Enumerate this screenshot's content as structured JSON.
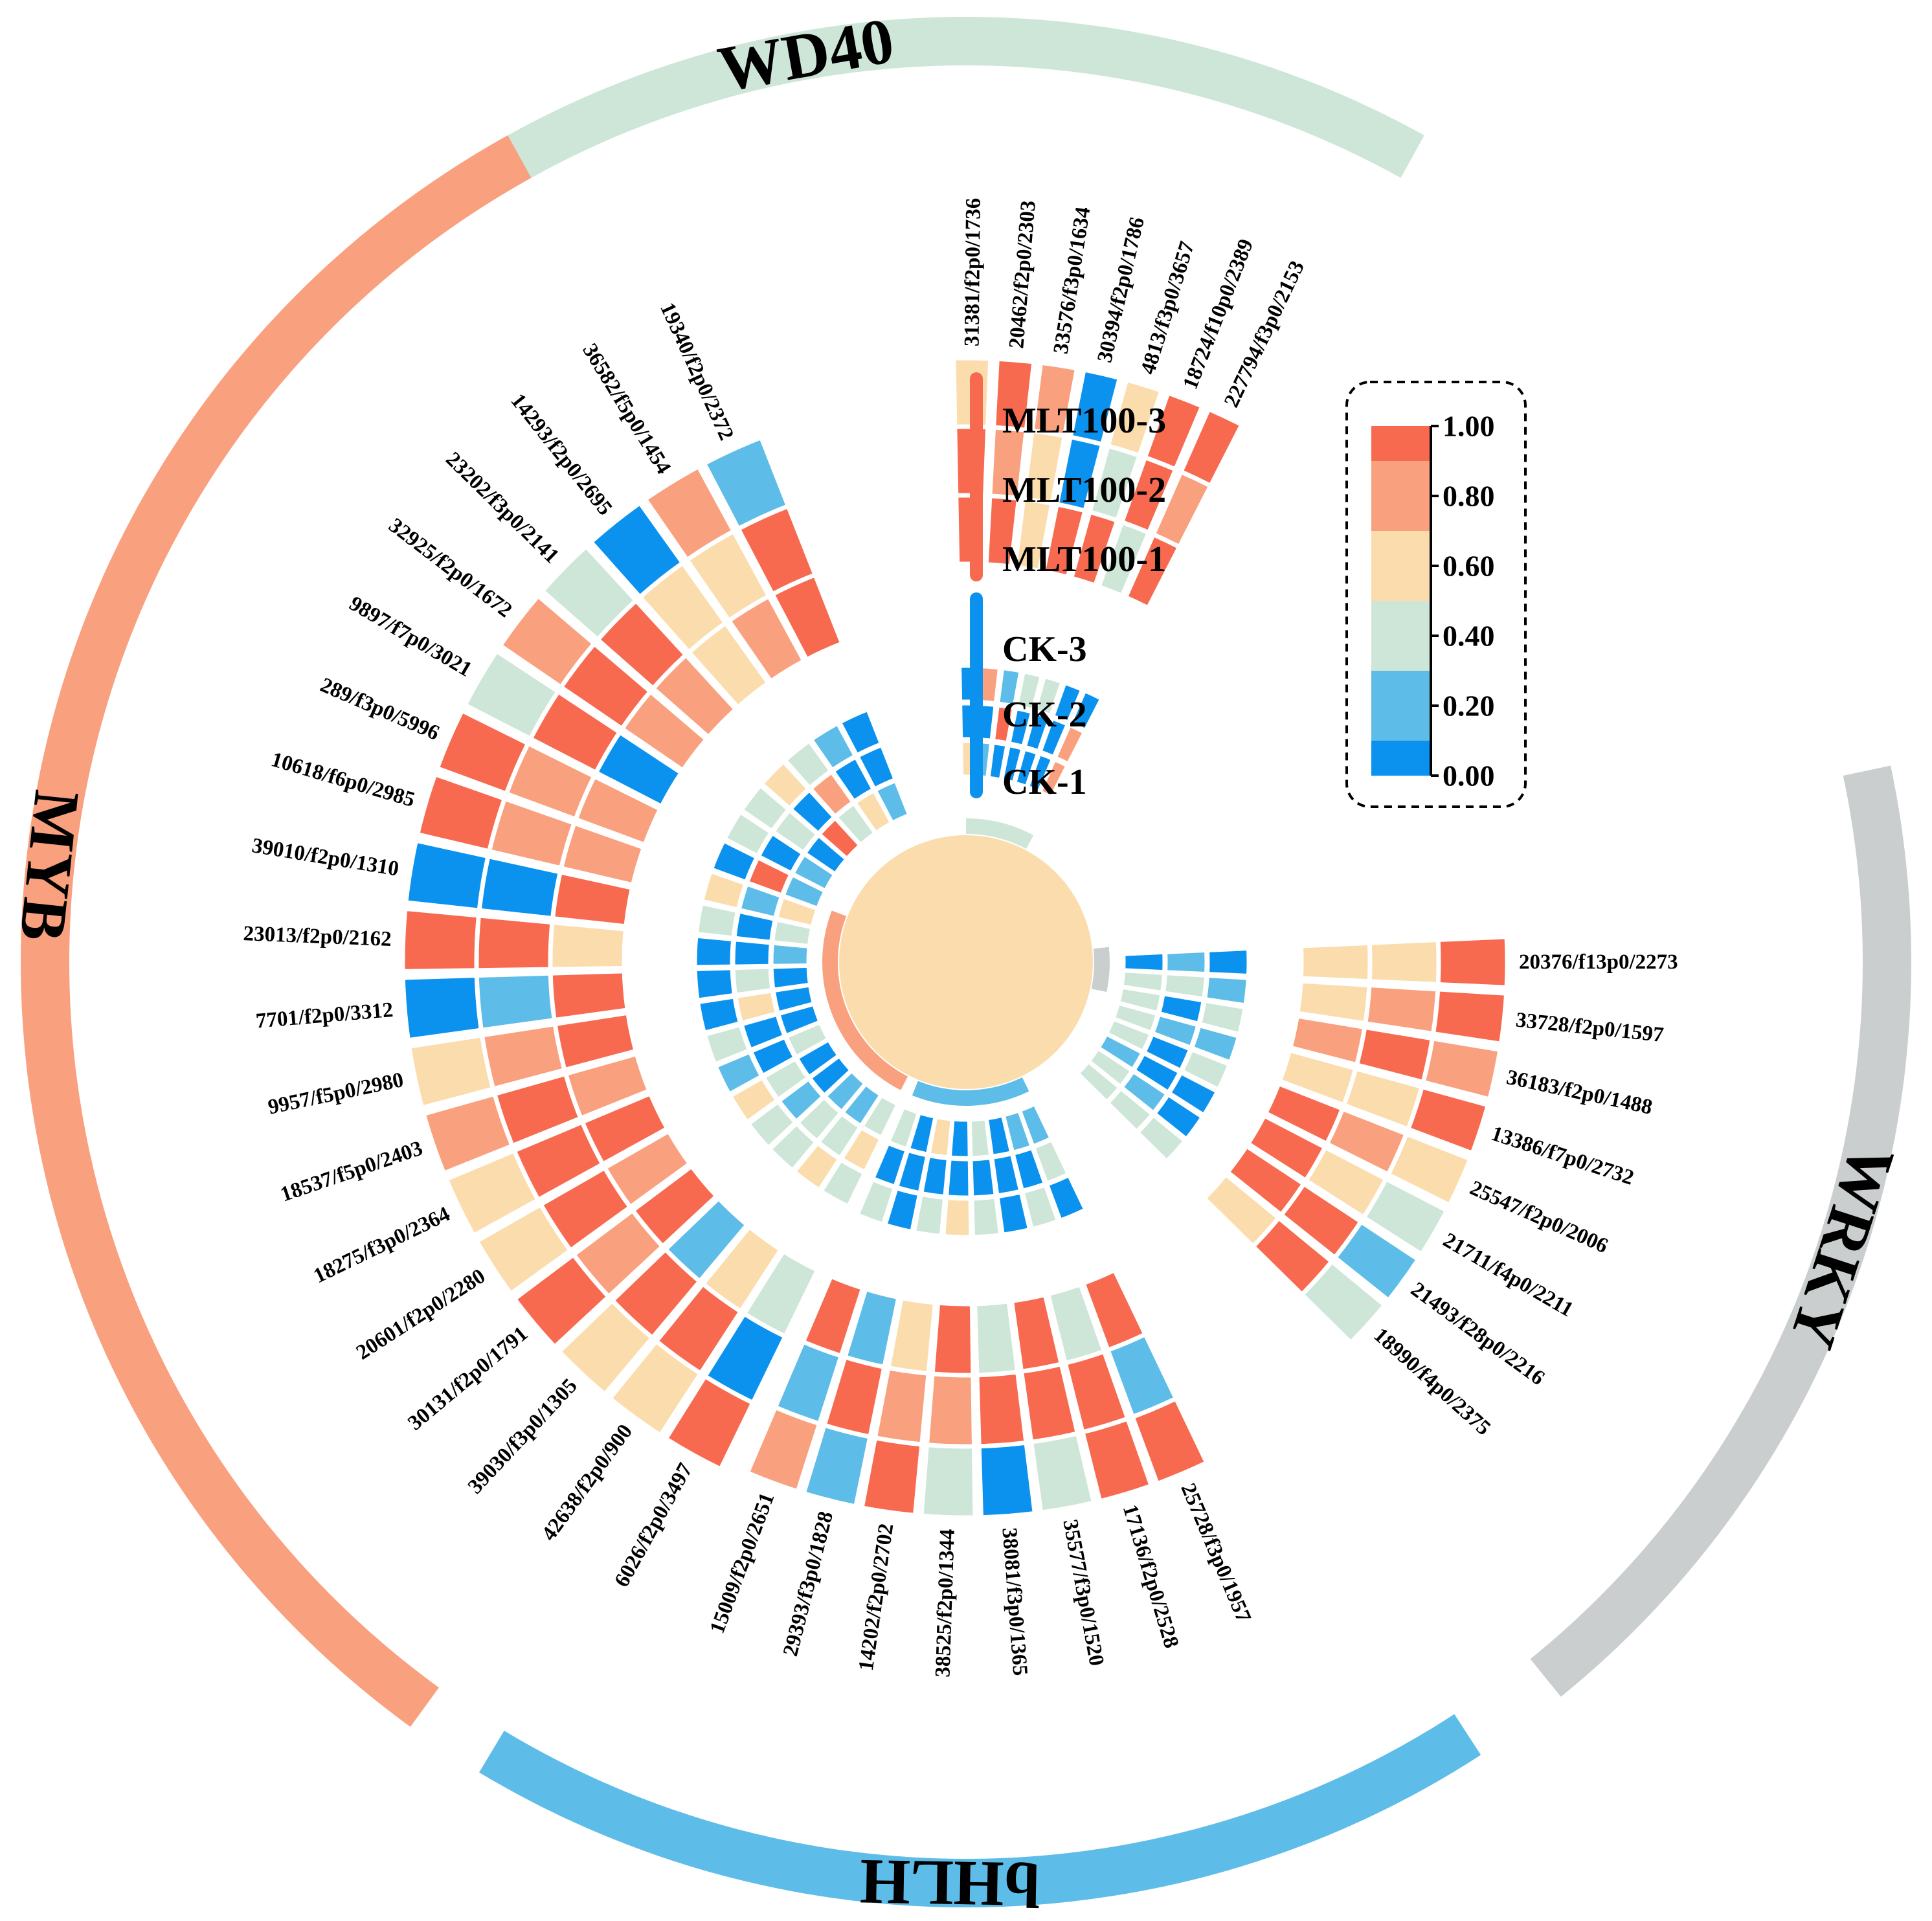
{
  "chart_data": {
    "type": "heatmap",
    "layout": "circular",
    "colorscale": {
      "min": 0.0,
      "max": 1.0,
      "bins": [
        {
          "from": 0.0,
          "to": 0.1,
          "color": "#0b92ef"
        },
        {
          "from": 0.1,
          "to": 0.3,
          "color": "#5dbde8"
        },
        {
          "from": 0.3,
          "to": 0.5,
          "color": "#cde6d7"
        },
        {
          "from": 0.5,
          "to": 0.7,
          "color": "#fbdcac"
        },
        {
          "from": 0.7,
          "to": 0.9,
          "color": "#f9a07f"
        },
        {
          "from": 0.9,
          "to": 1.0,
          "color": "#f76a50"
        }
      ],
      "legend_ticks": [
        "1.00",
        "0.80",
        "0.60",
        "0.40",
        "0.20",
        "0.00"
      ]
    },
    "samples": [
      "CK-1",
      "CK-2",
      "CK-3",
      "MLT100-1",
      "MLT100-2",
      "MLT100-3"
    ],
    "sample_groups": [
      {
        "name": "MLT100",
        "color": "#f76a50",
        "labels": [
          "MLT100-3",
          "MLT100-2",
          "MLT100-1"
        ]
      },
      {
        "name": "CK",
        "color": "#0b92ef",
        "labels": [
          "CK-3",
          "CK-2",
          "CK-1"
        ]
      }
    ],
    "families": [
      {
        "name": "WD40",
        "color": "#cde6d7",
        "genes": [
          {
            "id": "227794/f3p0/2153",
            "values": [
              0.7,
              0.75,
              0.0,
              0.95,
              0.8,
              0.95
            ]
          },
          {
            "id": "18724/f10p0/2389",
            "values": [
              0.0,
              0.0,
              0.05,
              0.4,
              0.95,
              0.95
            ]
          },
          {
            "id": "4813/f3p0/3657",
            "values": [
              0.05,
              0.0,
              0.4,
              0.95,
              0.4,
              0.6
            ]
          },
          {
            "id": "30394/f2p0/1786",
            "values": [
              0.0,
              0.0,
              0.4,
              0.95,
              0.0,
              0.0
            ]
          },
          {
            "id": "33576/f3p0/1634",
            "values": [
              0.0,
              0.95,
              0.2,
              0.6,
              0.6,
              0.8
            ]
          },
          {
            "id": "20462/f2p0/2303",
            "values": [
              0.2,
              0.0,
              0.8,
              0.95,
              0.8,
              0.95
            ]
          },
          {
            "id": "31381/f2p0/1736",
            "values": [
              0.6,
              0.0,
              0.0,
              0.95,
              0.95,
              0.6
            ]
          }
        ]
      },
      {
        "name": "WRKY",
        "color": "#cacecf",
        "genes": [
          {
            "id": "20376/f13p0/2273",
            "values": [
              0.0,
              0.2,
              0.0,
              0.6,
              0.6,
              0.95
            ]
          },
          {
            "id": "33728/f2p0/1597",
            "values": [
              0.4,
              0.4,
              0.2,
              0.6,
              0.8,
              0.95
            ]
          },
          {
            "id": "36183/f2p0/1488",
            "values": [
              0.4,
              0.0,
              0.4,
              0.8,
              0.95,
              0.8
            ]
          },
          {
            "id": "13386/f7p0/2732",
            "values": [
              0.4,
              0.2,
              0.2,
              0.6,
              0.6,
              0.95
            ]
          },
          {
            "id": "25547/f2p0/2006",
            "values": [
              0.4,
              0.0,
              0.4,
              0.95,
              0.8,
              0.6
            ]
          },
          {
            "id": "21711/f4p0/2211",
            "values": [
              0.2,
              0.0,
              0.0,
              0.95,
              0.6,
              0.4
            ]
          },
          {
            "id": "21493/f28p0/2216",
            "values": [
              0.4,
              0.2,
              0.0,
              0.95,
              0.95,
              0.2
            ]
          },
          {
            "id": "18990/f4p0/2375",
            "values": [
              0.4,
              0.4,
              0.4,
              0.6,
              0.95,
              0.4
            ]
          }
        ]
      },
      {
        "name": "bHLH",
        "color": "#5dbde8",
        "genes": [
          {
            "id": "25728/f3p0/1957",
            "values": [
              0.2,
              0.4,
              0.0,
              0.95,
              0.2,
              0.95
            ]
          },
          {
            "id": "17136/f2p0/2528",
            "values": [
              0.2,
              0.0,
              0.4,
              0.4,
              0.95,
              0.95
            ]
          },
          {
            "id": "35577/f3p0/1520",
            "values": [
              0.0,
              0.0,
              0.0,
              0.95,
              0.95,
              0.4
            ]
          },
          {
            "id": "38081/f3p0/1365",
            "values": [
              0.4,
              0.0,
              0.4,
              0.4,
              0.95,
              0.0
            ]
          },
          {
            "id": "38525/f2p0/1344",
            "values": [
              0.0,
              0.0,
              0.6,
              0.95,
              0.8,
              0.4
            ]
          },
          {
            "id": "14202/f2p0/2702",
            "values": [
              0.6,
              0.0,
              0.4,
              0.6,
              0.8,
              0.95
            ]
          },
          {
            "id": "29393/f3p0/1828",
            "values": [
              0.0,
              0.0,
              0.0,
              0.2,
              0.95,
              0.2
            ]
          },
          {
            "id": "15009/f2p0/2651",
            "values": [
              0.4,
              0.0,
              0.4,
              0.95,
              0.2,
              0.8
            ]
          }
        ]
      },
      {
        "name": "MYB",
        "color": "#f9a07f",
        "genes": [
          {
            "id": "6026/f2p0/3497",
            "values": [
              0.4,
              0.6,
              0.4,
              0.4,
              0.0,
              0.95
            ]
          },
          {
            "id": "42638/f2p0/900",
            "values": [
              0.2,
              0.4,
              0.6,
              0.6,
              0.95,
              0.6
            ]
          },
          {
            "id": "39030/f3p0/1305",
            "values": [
              0.2,
              0.4,
              0.4,
              0.2,
              0.95,
              0.6
            ]
          },
          {
            "id": "30131/f2p0/1791",
            "values": [
              0.0,
              0.2,
              0.4,
              0.95,
              0.8,
              0.95
            ]
          },
          {
            "id": "20601/f2p0/2280",
            "values": [
              0.0,
              0.4,
              0.6,
              0.8,
              0.95,
              0.6
            ]
          },
          {
            "id": "18275/f3p0/2364",
            "values": [
              0.4,
              0.0,
              0.2,
              0.95,
              0.95,
              0.6
            ]
          },
          {
            "id": "18537/f5p0/2403",
            "values": [
              0.0,
              0.0,
              0.4,
              0.8,
              0.95,
              0.8
            ]
          },
          {
            "id": "9957/f5p0/2980",
            "values": [
              0.0,
              0.6,
              0.0,
              0.95,
              0.8,
              0.6
            ]
          },
          {
            "id": "7701/f2p0/3312",
            "values": [
              0.0,
              0.4,
              0.0,
              0.95,
              0.2,
              0.0
            ]
          },
          {
            "id": "23013/f2p0/2162",
            "values": [
              0.2,
              0.0,
              0.0,
              0.6,
              0.95,
              0.95
            ]
          },
          {
            "id": "39010/f2p0/1310",
            "values": [
              0.4,
              0.0,
              0.4,
              0.95,
              0.0,
              0.0
            ]
          },
          {
            "id": "10618/f6p0/2985",
            "values": [
              0.6,
              0.2,
              0.6,
              0.8,
              0.8,
              0.95
            ]
          },
          {
            "id": "289/f3p0/5996",
            "values": [
              0.2,
              0.95,
              0.0,
              0.8,
              0.8,
              0.95
            ]
          },
          {
            "id": "9897/f7p0/3021",
            "values": [
              0.2,
              0.0,
              0.4,
              0.0,
              0.95,
              0.4
            ]
          },
          {
            "id": "32925/f2p0/1672",
            "values": [
              0.0,
              0.4,
              0.4,
              0.8,
              0.95,
              0.8
            ]
          },
          {
            "id": "23202/f3p0/2141",
            "values": [
              0.95,
              0.0,
              0.6,
              0.8,
              0.95,
              0.4
            ]
          },
          {
            "id": "14293/f2p0/2695",
            "values": [
              0.4,
              0.8,
              0.4,
              0.6,
              0.6,
              0.0
            ]
          },
          {
            "id": "36582/f5p0/1454",
            "values": [
              0.6,
              0.0,
              0.2,
              0.8,
              0.6,
              0.8
            ]
          },
          {
            "id": "19340/f2p0/2372",
            "values": [
              0.2,
              0.0,
              0.0,
              0.95,
              0.95,
              0.2
            ]
          }
        ]
      }
    ],
    "center_value": 0.6
  }
}
